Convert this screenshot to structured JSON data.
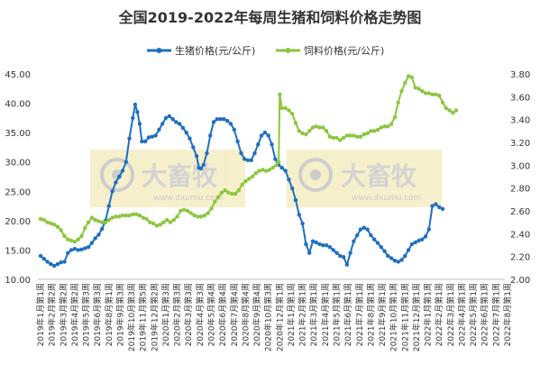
{
  "chart_data": {
    "type": "line",
    "title": "全国2019-2022年每周生猪和饲料价格走势图",
    "legend_position": "top-center",
    "grid": false,
    "y_left": {
      "min": 10,
      "max": 45,
      "step": 5,
      "decimals": 2
    },
    "y_right": {
      "min": 2.0,
      "max": 3.8,
      "step": 0.2,
      "decimals": 2
    },
    "x_tick_labels": [
      "2019年1月第1周",
      "2019年2月第2周",
      "2019年3月第2周",
      "2019年4月第2周",
      "2019年5月第3周",
      "2019年6月第3周",
      "2019年8月第1周",
      "2019年9月第3周",
      "2019年10月第3周",
      "2019年11月第5周",
      "2019年12月第2周",
      "2020年1月第3周",
      "2020年2月第3周",
      "2020年3月第3周",
      "2020年4月第3周",
      "2020年5月第4周",
      "2020年6月第4周",
      "2020年7月第4周",
      "2020年8月第4周",
      "2020年9月第4周",
      "2020年10月第3周",
      "2020年12月第1周",
      "2021年1月第1周",
      "2021年2月第1周",
      "2021年3月第1周",
      "2021年4月第1周",
      "2021年5月第1周",
      "2021年6月第1周",
      "2021年7月第1周",
      "2021年8月第1周",
      "2021年9月第1周",
      "2021年10月第1周",
      "2021年11月第1周",
      "2021年12月第1周",
      "2022年1月第1周",
      "2022年2月第1周",
      "2022年3月第1周",
      "2022年4月第1周",
      "2022年5月第1周",
      "2022年6月第1周",
      "2022年7月第1周",
      "2022年8月第1周"
    ],
    "x_count": 42,
    "series": [
      {
        "name": "生猪价格(元/公斤)",
        "axis": "left",
        "color": "#1f6fbf",
        "points": [
          [
            0,
            14.0
          ],
          [
            0.3,
            13.5
          ],
          [
            0.6,
            13.0
          ],
          [
            0.9,
            12.6
          ],
          [
            1.2,
            12.3
          ],
          [
            1.5,
            12.6
          ],
          [
            1.8,
            12.9
          ],
          [
            2.1,
            13.0
          ],
          [
            2.4,
            14.5
          ],
          [
            2.7,
            15.0
          ],
          [
            3.0,
            15.2
          ],
          [
            3.3,
            15.0
          ],
          [
            3.6,
            15.1
          ],
          [
            3.9,
            15.3
          ],
          [
            4.2,
            15.5
          ],
          [
            4.5,
            16.2
          ],
          [
            4.8,
            17.0
          ],
          [
            5.1,
            17.6
          ],
          [
            5.4,
            18.6
          ],
          [
            5.7,
            20.0
          ],
          [
            6.0,
            22.5
          ],
          [
            6.3,
            25.0
          ],
          [
            6.6,
            26.5
          ],
          [
            6.9,
            27.5
          ],
          [
            7.2,
            28.5
          ],
          [
            7.5,
            30.0
          ],
          [
            7.8,
            34.0
          ],
          [
            8.1,
            37.5
          ],
          [
            8.3,
            39.8
          ],
          [
            8.5,
            38.5
          ],
          [
            8.7,
            36.5
          ],
          [
            8.9,
            33.5
          ],
          [
            9.2,
            33.5
          ],
          [
            9.5,
            34.2
          ],
          [
            9.8,
            34.3
          ],
          [
            10.1,
            34.5
          ],
          [
            10.4,
            35.5
          ],
          [
            10.7,
            36.5
          ],
          [
            11.0,
            37.5
          ],
          [
            11.3,
            37.8
          ],
          [
            11.6,
            37.3
          ],
          [
            11.9,
            36.8
          ],
          [
            12.2,
            36.5
          ],
          [
            12.5,
            35.8
          ],
          [
            12.8,
            35.0
          ],
          [
            13.1,
            34.0
          ],
          [
            13.4,
            32.5
          ],
          [
            13.7,
            31.0
          ],
          [
            13.9,
            29.0
          ],
          [
            14.1,
            28.9
          ],
          [
            14.3,
            29.5
          ],
          [
            14.6,
            31.5
          ],
          [
            14.9,
            34.5
          ],
          [
            15.2,
            36.8
          ],
          [
            15.5,
            37.3
          ],
          [
            15.8,
            37.3
          ],
          [
            16.1,
            37.3
          ],
          [
            16.4,
            37.0
          ],
          [
            16.7,
            36.5
          ],
          [
            17.0,
            35.5
          ],
          [
            17.3,
            33.5
          ],
          [
            17.6,
            31.5
          ],
          [
            17.9,
            30.5
          ],
          [
            18.2,
            30.3
          ],
          [
            18.5,
            30.3
          ],
          [
            18.8,
            31.5
          ],
          [
            19.1,
            33.0
          ],
          [
            19.4,
            34.5
          ],
          [
            19.7,
            35.0
          ],
          [
            20.0,
            34.5
          ],
          [
            20.3,
            33.0
          ],
          [
            20.6,
            30.5
          ],
          [
            20.9,
            29.5
          ],
          [
            21.2,
            29.0
          ],
          [
            21.5,
            28.5
          ],
          [
            21.8,
            27.0
          ],
          [
            22.1,
            25.5
          ],
          [
            22.4,
            23.5
          ],
          [
            22.7,
            21.0
          ],
          [
            23.0,
            19.5
          ],
          [
            23.3,
            16.0
          ],
          [
            23.6,
            14.5
          ],
          [
            23.9,
            16.5
          ],
          [
            24.2,
            16.3
          ],
          [
            24.5,
            16.0
          ],
          [
            24.8,
            15.8
          ],
          [
            25.1,
            15.8
          ],
          [
            25.4,
            15.5
          ],
          [
            25.7,
            15.0
          ],
          [
            26.0,
            14.5
          ],
          [
            26.3,
            14.0
          ],
          [
            26.6,
            13.8
          ],
          [
            26.9,
            12.5
          ],
          [
            27.2,
            14.5
          ],
          [
            27.5,
            16.5
          ],
          [
            27.8,
            17.5
          ],
          [
            28.1,
            18.5
          ],
          [
            28.4,
            18.8
          ],
          [
            28.7,
            18.5
          ],
          [
            29.0,
            17.5
          ],
          [
            29.3,
            16.8
          ],
          [
            29.6,
            16.2
          ],
          [
            29.9,
            15.5
          ],
          [
            30.2,
            14.8
          ],
          [
            30.5,
            14.0
          ],
          [
            30.8,
            13.6
          ],
          [
            31.1,
            13.2
          ],
          [
            31.4,
            13.0
          ],
          [
            31.7,
            13.3
          ],
          [
            32.0,
            14.0
          ],
          [
            32.3,
            15.0
          ],
          [
            32.6,
            16.0
          ],
          [
            32.9,
            16.3
          ],
          [
            33.2,
            16.6
          ],
          [
            33.5,
            16.8
          ],
          [
            33.8,
            17.3
          ],
          [
            34.1,
            18.5
          ],
          [
            34.4,
            22.5
          ],
          [
            34.7,
            22.8
          ],
          [
            35.0,
            22.3
          ],
          [
            35.3,
            22.0
          ]
        ]
      },
      {
        "name": "饲料价格(元/公斤)",
        "axis": "right",
        "color": "#8cc63f",
        "points": [
          [
            0,
            2.53
          ],
          [
            0.3,
            2.52
          ],
          [
            0.6,
            2.5
          ],
          [
            0.9,
            2.49
          ],
          [
            1.2,
            2.48
          ],
          [
            1.5,
            2.46
          ],
          [
            1.8,
            2.43
          ],
          [
            2.1,
            2.38
          ],
          [
            2.4,
            2.35
          ],
          [
            2.7,
            2.34
          ],
          [
            3.0,
            2.33
          ],
          [
            3.3,
            2.35
          ],
          [
            3.6,
            2.38
          ],
          [
            3.9,
            2.45
          ],
          [
            4.2,
            2.5
          ],
          [
            4.5,
            2.54
          ],
          [
            4.8,
            2.52
          ],
          [
            5.1,
            2.51
          ],
          [
            5.4,
            2.5
          ],
          [
            5.7,
            2.5
          ],
          [
            6.0,
            2.52
          ],
          [
            6.3,
            2.54
          ],
          [
            6.6,
            2.55
          ],
          [
            6.9,
            2.55
          ],
          [
            7.2,
            2.56
          ],
          [
            7.5,
            2.56
          ],
          [
            7.8,
            2.56
          ],
          [
            8.1,
            2.57
          ],
          [
            8.4,
            2.57
          ],
          [
            8.7,
            2.56
          ],
          [
            9.0,
            2.54
          ],
          [
            9.3,
            2.53
          ],
          [
            9.6,
            2.5
          ],
          [
            9.9,
            2.49
          ],
          [
            10.2,
            2.47
          ],
          [
            10.5,
            2.48
          ],
          [
            10.8,
            2.5
          ],
          [
            11.1,
            2.52
          ],
          [
            11.4,
            2.5
          ],
          [
            11.7,
            2.52
          ],
          [
            12.0,
            2.55
          ],
          [
            12.3,
            2.6
          ],
          [
            12.6,
            2.61
          ],
          [
            12.9,
            2.6
          ],
          [
            13.2,
            2.58
          ],
          [
            13.5,
            2.56
          ],
          [
            13.8,
            2.55
          ],
          [
            14.1,
            2.55
          ],
          [
            14.4,
            2.56
          ],
          [
            14.7,
            2.58
          ],
          [
            15.0,
            2.62
          ],
          [
            15.3,
            2.68
          ],
          [
            15.6,
            2.72
          ],
          [
            15.9,
            2.76
          ],
          [
            16.2,
            2.78
          ],
          [
            16.5,
            2.76
          ],
          [
            16.8,
            2.75
          ],
          [
            17.1,
            2.75
          ],
          [
            17.4,
            2.78
          ],
          [
            17.7,
            2.83
          ],
          [
            18.0,
            2.86
          ],
          [
            18.3,
            2.88
          ],
          [
            18.6,
            2.9
          ],
          [
            18.9,
            2.93
          ],
          [
            19.2,
            2.95
          ],
          [
            19.5,
            2.96
          ],
          [
            19.8,
            2.95
          ],
          [
            20.1,
            2.96
          ],
          [
            20.4,
            2.98
          ],
          [
            20.7,
            3.0
          ],
          [
            20.9,
            3.03
          ],
          [
            21.0,
            3.62
          ],
          [
            21.2,
            3.5
          ],
          [
            21.5,
            3.5
          ],
          [
            21.8,
            3.48
          ],
          [
            22.1,
            3.45
          ],
          [
            22.4,
            3.37
          ],
          [
            22.7,
            3.3
          ],
          [
            23.0,
            3.28
          ],
          [
            23.3,
            3.27
          ],
          [
            23.6,
            3.3
          ],
          [
            23.9,
            3.33
          ],
          [
            24.2,
            3.34
          ],
          [
            24.5,
            3.33
          ],
          [
            24.8,
            3.33
          ],
          [
            25.1,
            3.3
          ],
          [
            25.4,
            3.25
          ],
          [
            25.7,
            3.24
          ],
          [
            26.0,
            3.24
          ],
          [
            26.3,
            3.22
          ],
          [
            26.6,
            3.24
          ],
          [
            26.9,
            3.26
          ],
          [
            27.2,
            3.26
          ],
          [
            27.5,
            3.26
          ],
          [
            27.8,
            3.25
          ],
          [
            28.1,
            3.25
          ],
          [
            28.4,
            3.27
          ],
          [
            28.7,
            3.28
          ],
          [
            29.0,
            3.3
          ],
          [
            29.3,
            3.3
          ],
          [
            29.6,
            3.31
          ],
          [
            29.9,
            3.33
          ],
          [
            30.2,
            3.34
          ],
          [
            30.5,
            3.34
          ],
          [
            30.8,
            3.36
          ],
          [
            31.1,
            3.42
          ],
          [
            31.4,
            3.55
          ],
          [
            31.7,
            3.65
          ],
          [
            32.0,
            3.72
          ],
          [
            32.3,
            3.78
          ],
          [
            32.6,
            3.77
          ],
          [
            32.9,
            3.68
          ],
          [
            33.2,
            3.67
          ],
          [
            33.5,
            3.65
          ],
          [
            33.8,
            3.63
          ],
          [
            34.1,
            3.63
          ],
          [
            34.4,
            3.62
          ],
          [
            34.7,
            3.62
          ],
          [
            35.0,
            3.61
          ],
          [
            35.3,
            3.55
          ],
          [
            35.6,
            3.5
          ],
          [
            35.9,
            3.48
          ],
          [
            36.2,
            3.46
          ],
          [
            36.5,
            3.48
          ]
        ]
      }
    ]
  },
  "watermark": {
    "text": "大畜牧",
    "subtext": "www.dxumu.com"
  }
}
